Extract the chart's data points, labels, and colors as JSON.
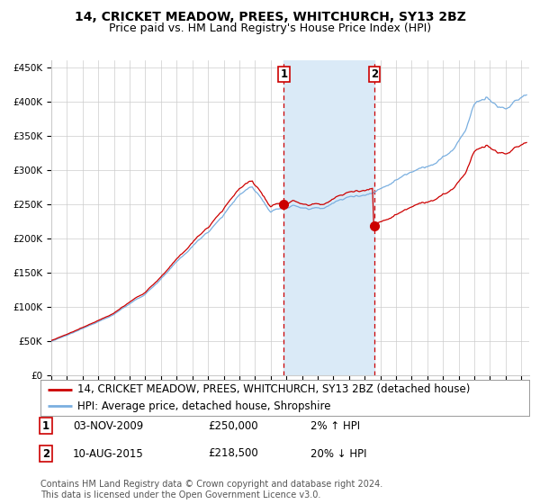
{
  "title": "14, CRICKET MEADOW, PREES, WHITCHURCH, SY13 2BZ",
  "subtitle": "Price paid vs. HM Land Registry's House Price Index (HPI)",
  "ylim": [
    0,
    460000
  ],
  "xlim_start": 1995.0,
  "xlim_end": 2025.5,
  "yticks": [
    0,
    50000,
    100000,
    150000,
    200000,
    250000,
    300000,
    350000,
    400000,
    450000
  ],
  "ytick_labels": [
    "£0",
    "£50K",
    "£100K",
    "£150K",
    "£200K",
    "£250K",
    "£300K",
    "£350K",
    "£400K",
    "£450K"
  ],
  "xticks": [
    1995,
    1996,
    1997,
    1998,
    1999,
    2000,
    2001,
    2002,
    2003,
    2004,
    2005,
    2006,
    2007,
    2008,
    2009,
    2010,
    2011,
    2012,
    2013,
    2014,
    2015,
    2016,
    2017,
    2018,
    2019,
    2020,
    2021,
    2022,
    2023,
    2024,
    2025
  ],
  "transaction1_date": 2009.84,
  "transaction1_price": 250000,
  "transaction1_label": "1",
  "transaction2_date": 2015.61,
  "transaction2_price": 218500,
  "transaction2_label": "2",
  "hpi_color": "#7aafe0",
  "price_color": "#cc0000",
  "marker_color": "#cc0000",
  "shade_color": "#daeaf7",
  "dashed_line_color": "#cc0000",
  "grid_color": "#cccccc",
  "background_color": "#ffffff",
  "legend_line1": "14, CRICKET MEADOW, PREES, WHITCHURCH, SY13 2BZ (detached house)",
  "legend_line2": "HPI: Average price, detached house, Shropshire",
  "annotation1": [
    "1",
    "03-NOV-2009",
    "£250,000",
    "2% ↑ HPI"
  ],
  "annotation2": [
    "2",
    "10-AUG-2015",
    "£218,500",
    "20% ↓ HPI"
  ],
  "footnote": "Contains HM Land Registry data © Crown copyright and database right 2024.\nThis data is licensed under the Open Government Licence v3.0.",
  "title_fontsize": 10,
  "subtitle_fontsize": 9,
  "tick_fontsize": 7.5,
  "legend_fontsize": 8.5,
  "annot_fontsize": 8.5
}
